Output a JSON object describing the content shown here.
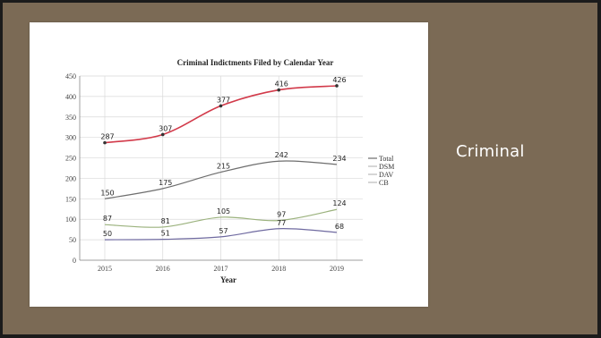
{
  "slide": {
    "side_title": "Criminal"
  },
  "chart_data": {
    "type": "line",
    "title": "Criminal Indictments Filed by Calendar Year",
    "xlabel": "Year",
    "ylabel": "",
    "categories": [
      "2015",
      "2016",
      "2017",
      "2018",
      "2019"
    ],
    "ylim": [
      0,
      450
    ],
    "yticks": [
      0,
      50,
      100,
      150,
      200,
      250,
      300,
      350,
      400,
      450
    ],
    "grid": true,
    "legend_position": "right",
    "series": [
      {
        "name": "Total",
        "values": [
          287,
          307,
          377,
          416,
          426
        ],
        "color": "#d23a4a",
        "marker": true
      },
      {
        "name": "DSM",
        "values": [
          150,
          175,
          215,
          242,
          234
        ],
        "color": "#6e6e6e",
        "marker": false
      },
      {
        "name": "DAV",
        "values": [
          87,
          81,
          105,
          97,
          124
        ],
        "color": "#9bb27d",
        "marker": false
      },
      {
        "name": "CB",
        "values": [
          50,
          51,
          57,
          77,
          68
        ],
        "color": "#6f6aa0",
        "marker": false
      }
    ]
  }
}
